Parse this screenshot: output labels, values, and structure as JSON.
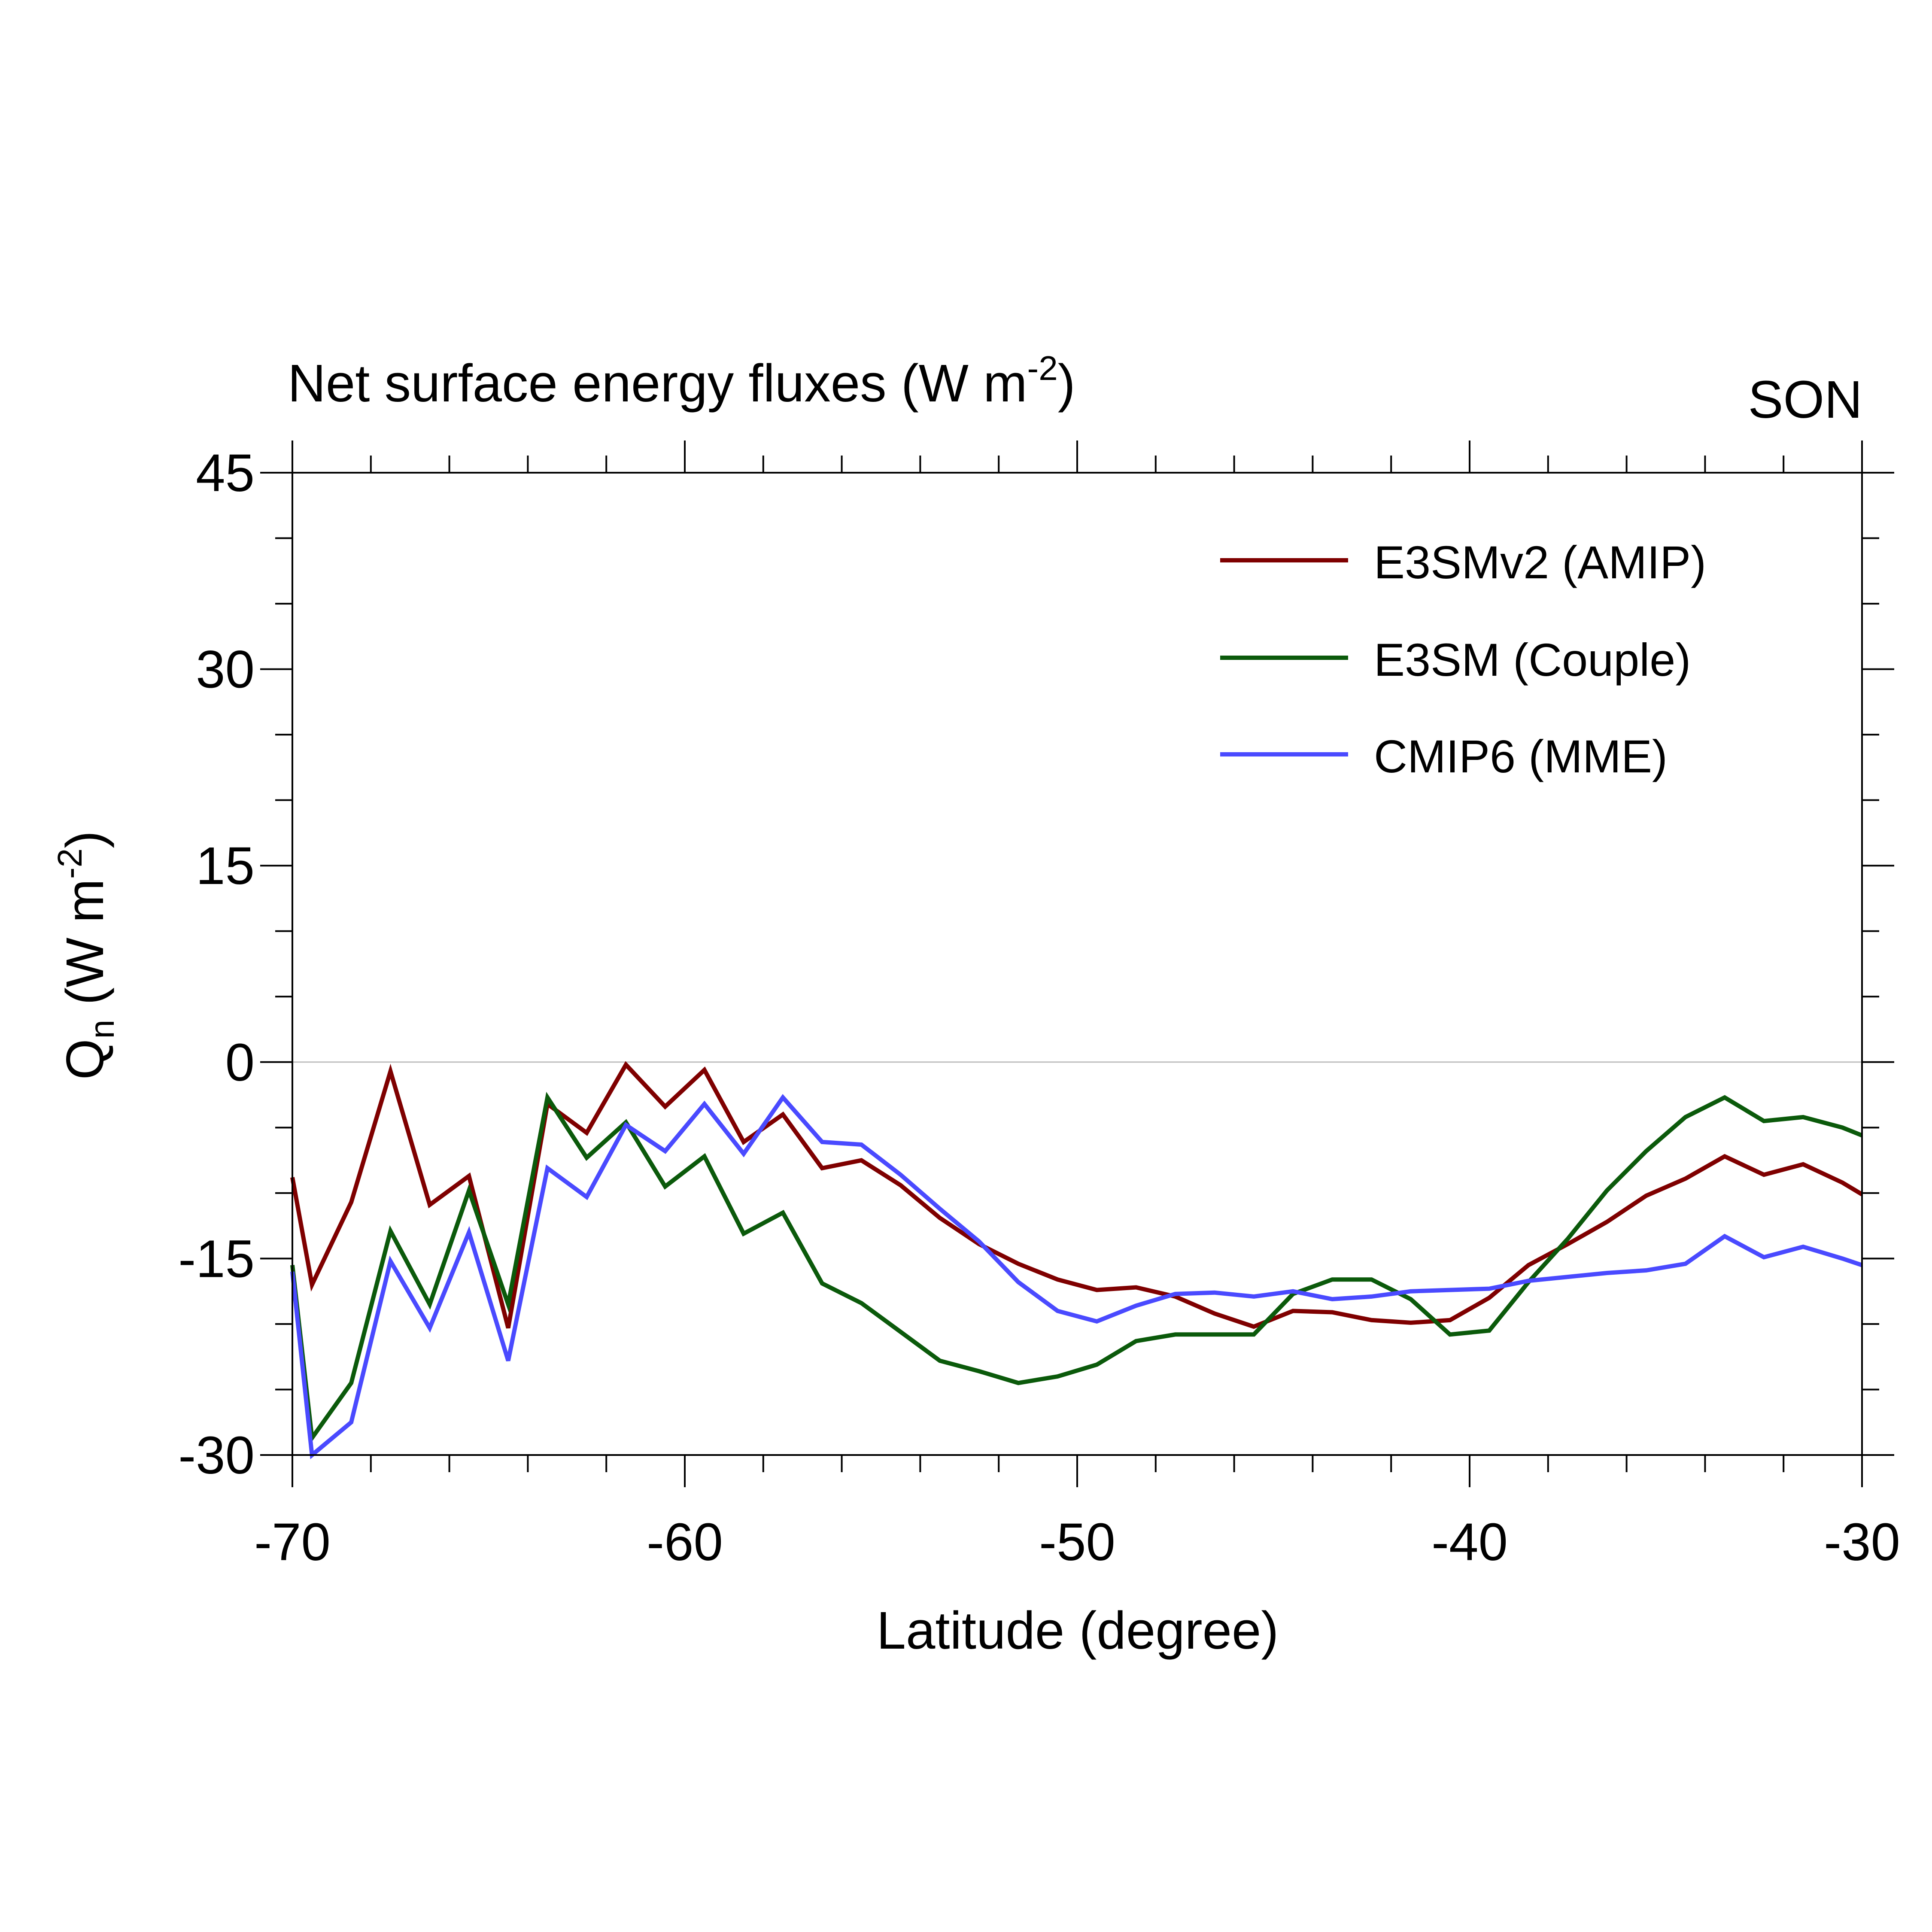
{
  "chart_data": {
    "type": "line",
    "title_main": "Net surface energy fluxes (W m",
    "title_sup": "-2",
    "title_close": ")",
    "season": "SON",
    "xlabel": "Latitude (degree)",
    "ylabel": {
      "main": "Q",
      "sub": "n",
      "units": " (W m",
      "sup": "-2",
      "close": ")"
    },
    "xlim": [
      -70,
      -30
    ],
    "ylim": [
      -30,
      45
    ],
    "xticks": [
      -70,
      -60,
      -50,
      -40,
      -30
    ],
    "xtick_labels": [
      "-70",
      "-60",
      "-50",
      "-40",
      "-30"
    ],
    "yticks": [
      -30,
      -15,
      0,
      15,
      30,
      45
    ],
    "ytick_labels": [
      "-30",
      "-15",
      "0",
      "15",
      "30",
      "45"
    ],
    "x_minor_step": 2,
    "y_minor_step": 5,
    "zero_line": true,
    "legend_position": "top-right",
    "x": [
      -70,
      -69.5,
      -68.5,
      -67.5,
      -66.5,
      -65.5,
      -64.5,
      -63.5,
      -62.5,
      -61.5,
      -60.5,
      -59.5,
      -58.5,
      -57.5,
      -56.5,
      -55.5,
      -54.5,
      -53.5,
      -52.5,
      -51.5,
      -50.5,
      -49.5,
      -48.5,
      -47.5,
      -46.5,
      -45.5,
      -44.5,
      -43.5,
      -42.5,
      -41.5,
      -40.5,
      -39.5,
      -38.5,
      -37.5,
      -36.5,
      -35.5,
      -34.5,
      -33.5,
      -32.5,
      -31.5,
      -30.5,
      -30
    ],
    "series": [
      {
        "name": "E3SMv2 (AMIP)",
        "color": "#7f0000",
        "values": [
          -8.8,
          -17.0,
          -10.7,
          -0.7,
          -10.9,
          -8.7,
          -20.3,
          -3.2,
          -5.4,
          -0.2,
          -3.4,
          -0.6,
          -6.1,
          -4.0,
          -8.1,
          -7.5,
          -9.4,
          -11.9,
          -13.9,
          -15.4,
          -16.6,
          -17.4,
          -17.2,
          -17.9,
          -19.2,
          -20.2,
          -19.0,
          -19.1,
          -19.7,
          -19.9,
          -19.7,
          -18.0,
          -15.5,
          -13.9,
          -12.2,
          -10.2,
          -8.9,
          -7.2,
          -8.6,
          -7.8,
          -9.2,
          -10.1
        ]
      },
      {
        "name": "E3SM (Couple)",
        "color": "#0b5a0b",
        "values": [
          -15.5,
          -28.7,
          -24.5,
          -12.9,
          -18.5,
          -9.8,
          -18.5,
          -2.7,
          -7.3,
          -4.6,
          -9.5,
          -7.2,
          -13.1,
          -11.5,
          -16.9,
          -18.4,
          -20.6,
          -22.8,
          -23.6,
          -24.5,
          -24.0,
          -23.1,
          -21.3,
          -20.8,
          -20.8,
          -20.8,
          -17.7,
          -16.6,
          -16.6,
          -18.1,
          -20.8,
          -20.5,
          -16.8,
          -13.5,
          -9.8,
          -6.8,
          -4.2,
          -2.7,
          -4.5,
          -4.2,
          -5.0,
          -5.6
        ]
      },
      {
        "name": "CMIP6 (MME)",
        "color": "#4a4aff",
        "values": [
          -16.0,
          -30.0,
          -27.5,
          -15.2,
          -20.3,
          -13.0,
          -22.8,
          -8.1,
          -10.3,
          -4.8,
          -6.8,
          -3.2,
          -7.0,
          -2.7,
          -6.1,
          -6.3,
          -8.6,
          -11.2,
          -13.7,
          -16.8,
          -19.0,
          -19.8,
          -18.6,
          -17.7,
          -17.6,
          -17.9,
          -17.5,
          -18.1,
          -17.9,
          -17.5,
          -17.4,
          -17.3,
          -16.7,
          -16.4,
          -16.1,
          -15.9,
          -15.4,
          -13.3,
          -14.9,
          -14.1,
          -15.0,
          -15.5
        ]
      }
    ]
  }
}
